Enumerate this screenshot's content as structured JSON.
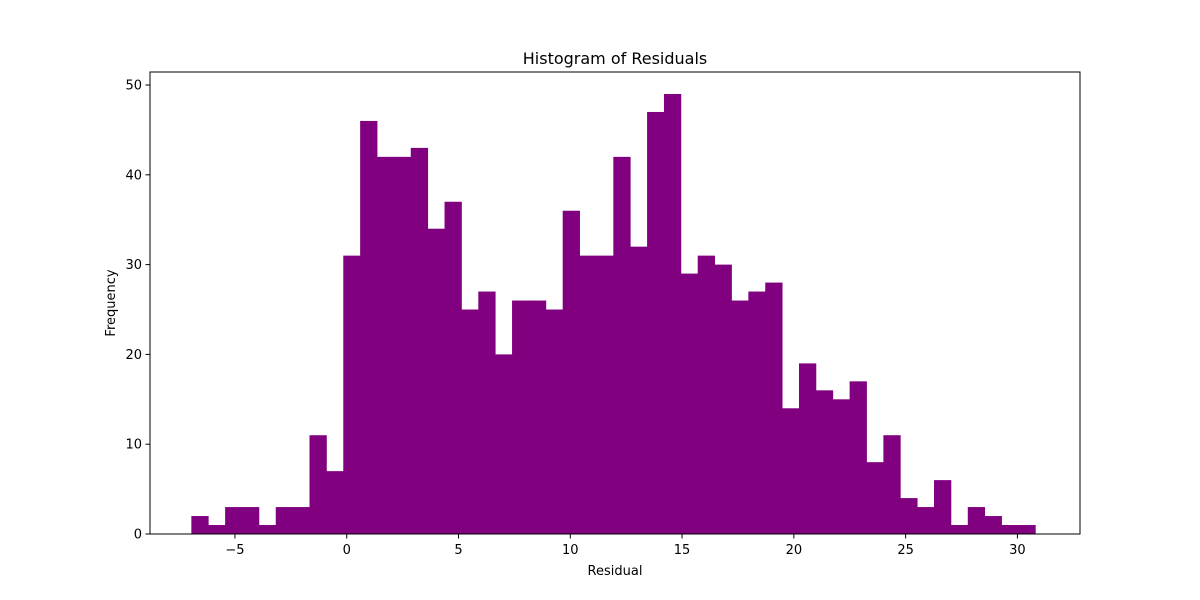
{
  "chart_data": {
    "type": "bar",
    "title": "Histogram of Residuals",
    "xlabel": "Residual",
    "ylabel": "Frequency",
    "color": "#800080",
    "bin_start": -6.95,
    "bin_width": 0.755,
    "values": [
      2,
      1,
      3,
      3,
      1,
      3,
      3,
      11,
      7,
      31,
      46,
      42,
      42,
      43,
      34,
      37,
      25,
      27,
      20,
      26,
      26,
      25,
      36,
      31,
      31,
      42,
      32,
      47,
      49,
      29,
      31,
      30,
      26,
      27,
      28,
      14,
      19,
      16,
      15,
      17,
      8,
      11,
      4,
      3,
      6,
      1,
      3,
      2,
      1,
      1
    ],
    "xlim": [
      -8.8,
      32.8
    ],
    "ylim": [
      0,
      51.45
    ],
    "xticks": [
      -5,
      0,
      5,
      10,
      15,
      20,
      25,
      30
    ],
    "xtick_labels": [
      "−5",
      "0",
      "5",
      "10",
      "15",
      "20",
      "25",
      "30"
    ],
    "yticks": [
      0,
      10,
      20,
      30,
      40,
      50
    ],
    "ytick_labels": [
      "0",
      "10",
      "20",
      "30",
      "40",
      "50"
    ],
    "grid": false,
    "legend": "none"
  }
}
